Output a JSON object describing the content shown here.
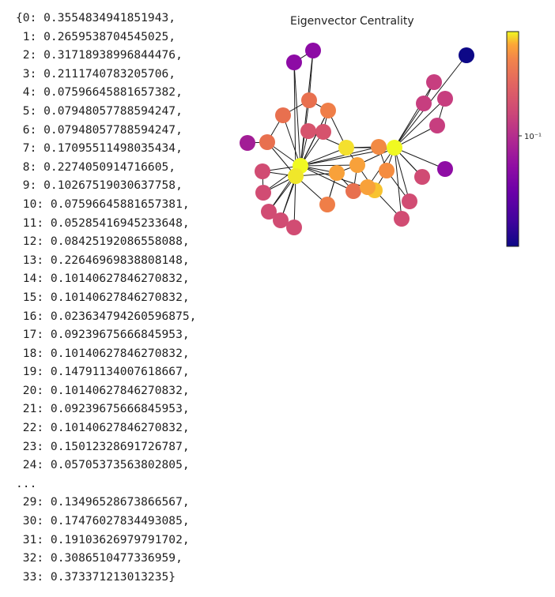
{
  "output": {
    "lines": [
      "{0: 0.3554834941851943,",
      " 1: 0.2659538704545025,",
      " 2: 0.31718938996844476,",
      " 3: 0.2111740783205706,",
      " 4: 0.07596645881657382,",
      " 5: 0.07948057788594247,",
      " 6: 0.07948057788594247,",
      " 7: 0.17095511498035434,",
      " 8: 0.2274050914716605,",
      " 9: 0.10267519030637758,",
      " 10: 0.07596645881657381,",
      " 11: 0.05285416945233648,",
      " 12: 0.08425192086558088,",
      " 13: 0.22646969838808148,",
      " 14: 0.10140627846270832,",
      " 15: 0.10140627846270832,",
      " 16: 0.023634794260596875,",
      " 17: 0.09239675666845953,",
      " 18: 0.10140627846270832,",
      " 19: 0.14791134007618667,",
      " 20: 0.10140627846270832,",
      " 21: 0.09239675666845953,",
      " 22: 0.10140627846270832,",
      " 23: 0.15012328691726787,",
      " 24: 0.05705373563802805,",
      "...",
      " 29: 0.13496528673866567,",
      " 30: 0.17476027834493085,",
      " 31: 0.19103626979791702,",
      " 32: 0.3086510477336959,",
      " 33: 0.373371213013235}"
    ]
  },
  "plot": {
    "title": "Eigenvector Centrality",
    "colormap": "plasma",
    "colorbar_tick_label": "10⁻¹",
    "edge_color": "#1a1a1a"
  }
}
